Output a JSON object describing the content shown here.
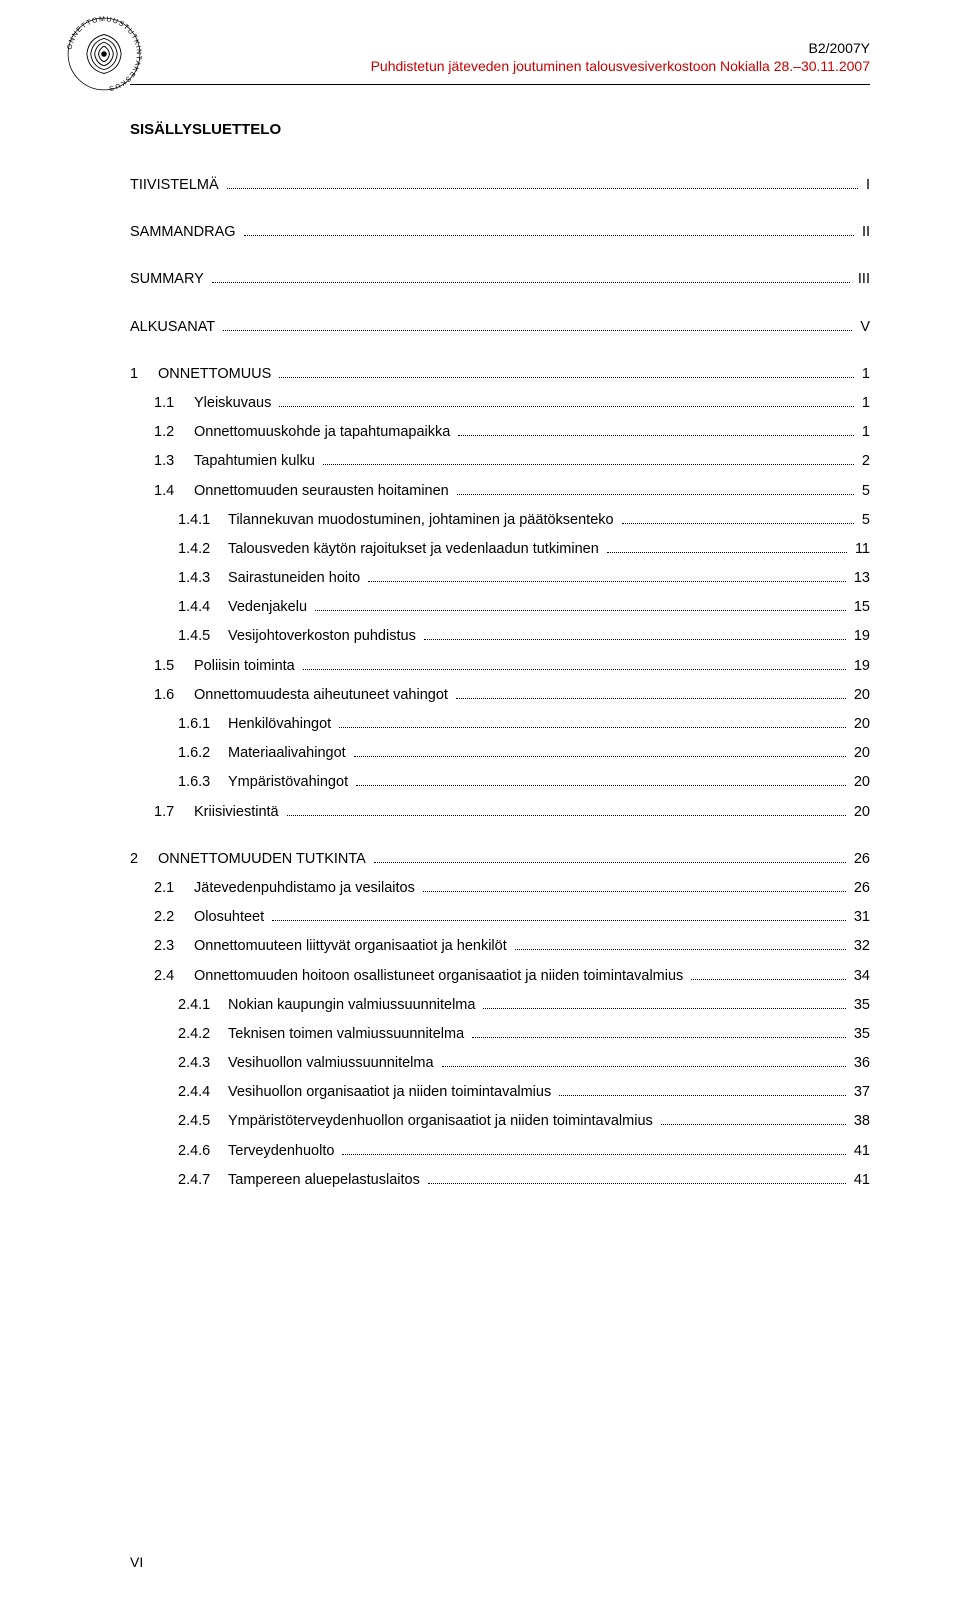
{
  "header": {
    "doc_id": "B2/2007Y",
    "doc_title": "Puhdistetun jäteveden joutuminen talousvesiverkostoon Nokialla 28.–30.11.2007"
  },
  "toc_title": "SISÄLLYSLUETTELO",
  "toc": [
    {
      "level": 1,
      "num": "",
      "label": "TIIVISTELMÄ",
      "page": "I",
      "gap_after": true
    },
    {
      "level": 1,
      "num": "",
      "label": "SAMMANDRAG",
      "page": "II",
      "gap_after": true
    },
    {
      "level": 1,
      "num": "",
      "label": "SUMMARY",
      "page": "III",
      "gap_after": true
    },
    {
      "level": 1,
      "num": "",
      "label": "ALKUSANAT",
      "page": "V",
      "gap_after": true
    },
    {
      "level": 1,
      "num": "1",
      "label": "ONNETTOMUUS",
      "page": "1"
    },
    {
      "level": 2,
      "num": "1.1",
      "label": "Yleiskuvaus",
      "page": "1"
    },
    {
      "level": 2,
      "num": "1.2",
      "label": "Onnettomuuskohde ja tapahtumapaikka",
      "page": "1"
    },
    {
      "level": 2,
      "num": "1.3",
      "label": "Tapahtumien kulku",
      "page": "2"
    },
    {
      "level": 2,
      "num": "1.4",
      "label": "Onnettomuuden seurausten hoitaminen",
      "page": "5"
    },
    {
      "level": 3,
      "num": "1.4.1",
      "label": "Tilannekuvan muodostuminen, johtaminen ja päätöksenteko",
      "page": "5"
    },
    {
      "level": 3,
      "num": "1.4.2",
      "label": "Talousveden käytön rajoitukset ja vedenlaadun tutkiminen",
      "page": "11"
    },
    {
      "level": 3,
      "num": "1.4.3",
      "label": "Sairastuneiden hoito",
      "page": "13"
    },
    {
      "level": 3,
      "num": "1.4.4",
      "label": "Vedenjakelu",
      "page": "15"
    },
    {
      "level": 3,
      "num": "1.4.5",
      "label": "Vesijohtoverkoston puhdistus",
      "page": "19"
    },
    {
      "level": 2,
      "num": "1.5",
      "label": "Poliisin toiminta",
      "page": "19"
    },
    {
      "level": 2,
      "num": "1.6",
      "label": "Onnettomuudesta aiheutuneet vahingot",
      "page": "20"
    },
    {
      "level": 3,
      "num": "1.6.1",
      "label": "Henkilövahingot",
      "page": "20"
    },
    {
      "level": 3,
      "num": "1.6.2",
      "label": "Materiaalivahingot",
      "page": "20"
    },
    {
      "level": 3,
      "num": "1.6.3",
      "label": "Ympäristövahingot",
      "page": "20"
    },
    {
      "level": 2,
      "num": "1.7",
      "label": "Kriisiviestintä",
      "page": "20",
      "gap_after": true
    },
    {
      "level": 1,
      "num": "2",
      "label": "ONNETTOMUUDEN TUTKINTA",
      "page": "26"
    },
    {
      "level": 2,
      "num": "2.1",
      "label": "Jätevedenpuhdistamo ja vesilaitos",
      "page": "26"
    },
    {
      "level": 2,
      "num": "2.2",
      "label": "Olosuhteet",
      "page": "31"
    },
    {
      "level": 2,
      "num": "2.3",
      "label": "Onnettomuuteen liittyvät organisaatiot ja henkilöt",
      "page": "32"
    },
    {
      "level": 2,
      "num": "2.4",
      "label": "Onnettomuuden hoitoon osallistuneet organisaatiot ja niiden toimintavalmius",
      "page": "34"
    },
    {
      "level": 3,
      "num": "2.4.1",
      "label": "Nokian kaupungin valmiussuunnitelma",
      "page": "35"
    },
    {
      "level": 3,
      "num": "2.4.2",
      "label": "Teknisen toimen valmiussuunnitelma",
      "page": "35"
    },
    {
      "level": 3,
      "num": "2.4.3",
      "label": "Vesihuollon valmiussuunnitelma",
      "page": "36"
    },
    {
      "level": 3,
      "num": "2.4.4",
      "label": "Vesihuollon organisaatiot ja niiden toimintavalmius",
      "page": "37"
    },
    {
      "level": 3,
      "num": "2.4.5",
      "label": "Ympäristöterveydenhuollon organisaatiot ja niiden toimintavalmius",
      "page": "38"
    },
    {
      "level": 3,
      "num": "2.4.6",
      "label": "Terveydenhuolto",
      "page": "41"
    },
    {
      "level": 3,
      "num": "2.4.7",
      "label": "Tampereen aluepelastuslaitos",
      "page": "41"
    }
  ],
  "page_number": "VI",
  "colors": {
    "text": "#000000",
    "subtitle": "#cc0000",
    "background": "#ffffff"
  }
}
